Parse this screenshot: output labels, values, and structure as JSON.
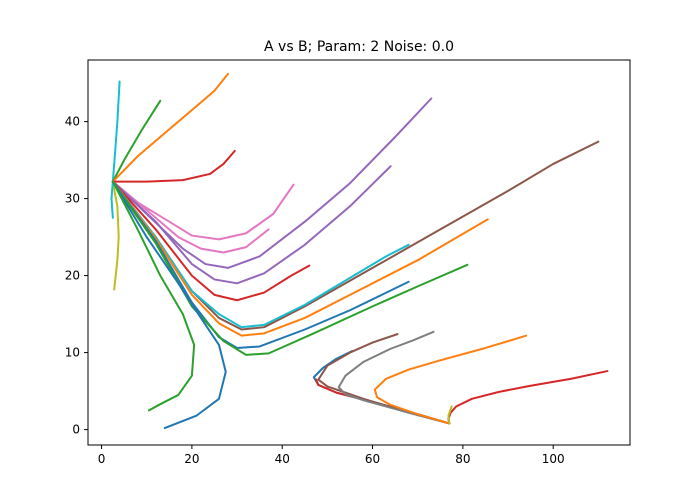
{
  "chart_data": {
    "type": "line",
    "title": "A vs B; Param: 2 Noise: 0.0",
    "xlabel": "",
    "ylabel": "",
    "xlim": [
      -3,
      117
    ],
    "ylim": [
      -2,
      48
    ],
    "x_ticks": [
      0,
      20,
      40,
      60,
      80,
      100
    ],
    "y_ticks": [
      0,
      10,
      20,
      30,
      40
    ],
    "grid": false,
    "legend": "none",
    "series": [
      {
        "color": "#17becf",
        "points": [
          [
            2.5,
            32.2
          ],
          [
            3.0,
            36
          ],
          [
            3.5,
            40
          ],
          [
            4,
            45.2
          ]
        ]
      },
      {
        "color": "#2ca02c",
        "points": [
          [
            2.5,
            32.2
          ],
          [
            5,
            35
          ],
          [
            9,
            39
          ],
          [
            13,
            42.7
          ]
        ]
      },
      {
        "color": "#ff7f0e",
        "points": [
          [
            2.5,
            32.2
          ],
          [
            8,
            35.5
          ],
          [
            15,
            39
          ],
          [
            21,
            42
          ],
          [
            25,
            44
          ],
          [
            28,
            46.2
          ]
        ]
      },
      {
        "color": "#d62728",
        "points": [
          [
            2.5,
            32.2
          ],
          [
            10,
            32.2
          ],
          [
            18,
            32.4
          ],
          [
            24,
            33.2
          ],
          [
            27,
            34.5
          ],
          [
            29.5,
            36.2
          ]
        ]
      },
      {
        "color": "#bcbd22",
        "points": [
          [
            2.5,
            32.2
          ],
          [
            3.5,
            29
          ],
          [
            3.8,
            25
          ],
          [
            3.5,
            22
          ],
          [
            2.8,
            18.2
          ]
        ]
      },
      {
        "color": "#17becf",
        "points": [
          [
            2.5,
            32.2
          ],
          [
            2.2,
            30
          ],
          [
            2.5,
            27.5
          ]
        ]
      },
      {
        "color": "#e377c2",
        "points": [
          [
            2.5,
            32.2
          ],
          [
            8,
            29.5
          ],
          [
            15,
            27
          ],
          [
            20,
            25.2
          ],
          [
            26,
            24.7
          ],
          [
            32,
            25.5
          ],
          [
            38,
            28
          ],
          [
            42.5,
            31.8
          ]
        ]
      },
      {
        "color": "#e377c2",
        "points": [
          [
            2.5,
            32.2
          ],
          [
            10,
            28.5
          ],
          [
            17,
            25
          ],
          [
            22,
            23.5
          ],
          [
            27,
            23
          ],
          [
            32,
            23.7
          ],
          [
            37,
            26
          ]
        ]
      },
      {
        "color": "#9467bd",
        "points": [
          [
            2.5,
            32.2
          ],
          [
            10,
            28
          ],
          [
            18,
            23.5
          ],
          [
            23,
            21.5
          ],
          [
            28,
            21
          ],
          [
            35,
            22.5
          ],
          [
            45,
            27
          ],
          [
            55,
            32
          ],
          [
            65,
            38
          ],
          [
            73,
            43
          ]
        ]
      },
      {
        "color": "#9467bd",
        "points": [
          [
            2.5,
            32.2
          ],
          [
            12,
            27
          ],
          [
            20,
            21.5
          ],
          [
            25,
            19.5
          ],
          [
            30,
            19
          ],
          [
            36,
            20.3
          ],
          [
            45,
            24
          ],
          [
            55,
            29
          ],
          [
            64,
            34.2
          ]
        ]
      },
      {
        "color": "#d62728",
        "points": [
          [
            2.5,
            32.2
          ],
          [
            12,
            26
          ],
          [
            20,
            20
          ],
          [
            25,
            17.5
          ],
          [
            30,
            16.8
          ],
          [
            36,
            17.8
          ],
          [
            42,
            20
          ],
          [
            46,
            21.3
          ]
        ]
      },
      {
        "color": "#8c564b",
        "points": [
          [
            2.5,
            32.2
          ],
          [
            12,
            25
          ],
          [
            20,
            18
          ],
          [
            26,
            14.5
          ],
          [
            31,
            13
          ],
          [
            36,
            13.3
          ],
          [
            45,
            16
          ],
          [
            60,
            21
          ],
          [
            75,
            26
          ],
          [
            90,
            31
          ],
          [
            100,
            34.5
          ],
          [
            110,
            37.4
          ]
        ]
      },
      {
        "color": "#17becf",
        "points": [
          [
            2.5,
            32.2
          ],
          [
            12,
            25
          ],
          [
            20,
            18
          ],
          [
            26,
            15
          ],
          [
            31,
            13.3
          ],
          [
            36,
            13.6
          ],
          [
            45,
            16.2
          ],
          [
            55,
            19.7
          ],
          [
            63,
            22.5
          ],
          [
            68,
            24
          ]
        ]
      },
      {
        "color": "#ff7f0e",
        "points": [
          [
            2.5,
            32.2
          ],
          [
            12,
            24.8
          ],
          [
            20,
            17.5
          ],
          [
            26,
            13.8
          ],
          [
            31,
            12.2
          ],
          [
            36,
            12.5
          ],
          [
            45,
            14.5
          ],
          [
            55,
            17.5
          ],
          [
            70,
            22
          ],
          [
            85.5,
            27.3
          ]
        ]
      },
      {
        "color": "#1f77b4",
        "points": [
          [
            2.5,
            32.2
          ],
          [
            12,
            24.5
          ],
          [
            20,
            16.5
          ],
          [
            26,
            12
          ],
          [
            30,
            10.6
          ],
          [
            35,
            10.8
          ],
          [
            45,
            13
          ],
          [
            55,
            15.5
          ],
          [
            68,
            19.2
          ]
        ]
      },
      {
        "color": "#2ca02c",
        "points": [
          [
            2.5,
            32.2
          ],
          [
            12,
            24.2
          ],
          [
            20,
            16
          ],
          [
            27,
            11.5
          ],
          [
            32,
            9.7
          ],
          [
            37,
            9.9
          ],
          [
            47,
            12.5
          ],
          [
            60,
            16
          ],
          [
            70,
            18.6
          ],
          [
            81,
            21.4
          ]
        ]
      },
      {
        "color": "#1f77b4",
        "points": [
          [
            2.5,
            32.2
          ],
          [
            10,
            25
          ],
          [
            17,
            19
          ],
          [
            22,
            14.5
          ],
          [
            26,
            11
          ],
          [
            27.5,
            7.5
          ],
          [
            26,
            4
          ],
          [
            21,
            1.8
          ],
          [
            14,
            0.2
          ]
        ]
      },
      {
        "color": "#2ca02c",
        "points": [
          [
            2.5,
            32.2
          ],
          [
            8,
            26
          ],
          [
            13,
            20
          ],
          [
            18,
            15
          ],
          [
            20.5,
            11
          ],
          [
            20,
            7
          ],
          [
            17,
            4.5
          ],
          [
            13,
            3.3
          ],
          [
            10.5,
            2.5
          ]
        ]
      },
      {
        "color": "#1f77b4",
        "points": [
          [
            77,
            0.8
          ],
          [
            70,
            2
          ],
          [
            60,
            3.6
          ],
          [
            52,
            4.8
          ],
          [
            48,
            5.8
          ],
          [
            47,
            6.8
          ],
          [
            49,
            8
          ],
          [
            52,
            9.2
          ],
          [
            55.5,
            10.2
          ]
        ]
      },
      {
        "color": "#d62728",
        "points": [
          [
            77,
            0.8
          ],
          [
            70,
            2
          ],
          [
            60,
            3.6
          ],
          [
            52,
            4.8
          ],
          [
            48,
            5.8
          ],
          [
            47.5,
            6.5
          ]
        ]
      },
      {
        "color": "#8c564b",
        "points": [
          [
            77,
            0.8
          ],
          [
            68,
            2.2
          ],
          [
            58,
            4
          ],
          [
            50,
            5.6
          ],
          [
            48,
            6.5
          ],
          [
            50,
            8.3
          ],
          [
            55,
            10
          ],
          [
            60,
            11.3
          ],
          [
            65.5,
            12.4
          ]
        ]
      },
      {
        "color": "#7f7f7f",
        "points": [
          [
            77,
            0.8
          ],
          [
            68,
            2.2
          ],
          [
            58,
            3.8
          ],
          [
            54,
            4.6
          ],
          [
            52.5,
            5.5
          ],
          [
            54,
            7
          ],
          [
            58,
            8.8
          ],
          [
            64,
            10.5
          ],
          [
            69,
            11.6
          ],
          [
            73.5,
            12.7
          ]
        ]
      },
      {
        "color": "#ff7f0e",
        "points": [
          [
            77,
            0.8
          ],
          [
            70,
            2
          ],
          [
            64,
            3.2
          ],
          [
            61,
            4.2
          ],
          [
            60.5,
            5.2
          ],
          [
            63,
            6.6
          ],
          [
            68,
            7.8
          ],
          [
            75,
            9
          ],
          [
            85,
            10.6
          ],
          [
            94,
            12.2
          ]
        ]
      },
      {
        "color": "#d62728",
        "points": [
          [
            77,
            0.8
          ],
          [
            76.8,
            1.4
          ],
          [
            77.3,
            2.2
          ],
          [
            78.5,
            3
          ],
          [
            82,
            4
          ],
          [
            88,
            4.9
          ],
          [
            95,
            5.7
          ],
          [
            104,
            6.6
          ],
          [
            112,
            7.6
          ]
        ]
      },
      {
        "color": "#bcbd22",
        "points": [
          [
            77,
            0.8
          ],
          [
            76.8,
            1.8
          ],
          [
            77.5,
            3
          ]
        ]
      }
    ]
  }
}
